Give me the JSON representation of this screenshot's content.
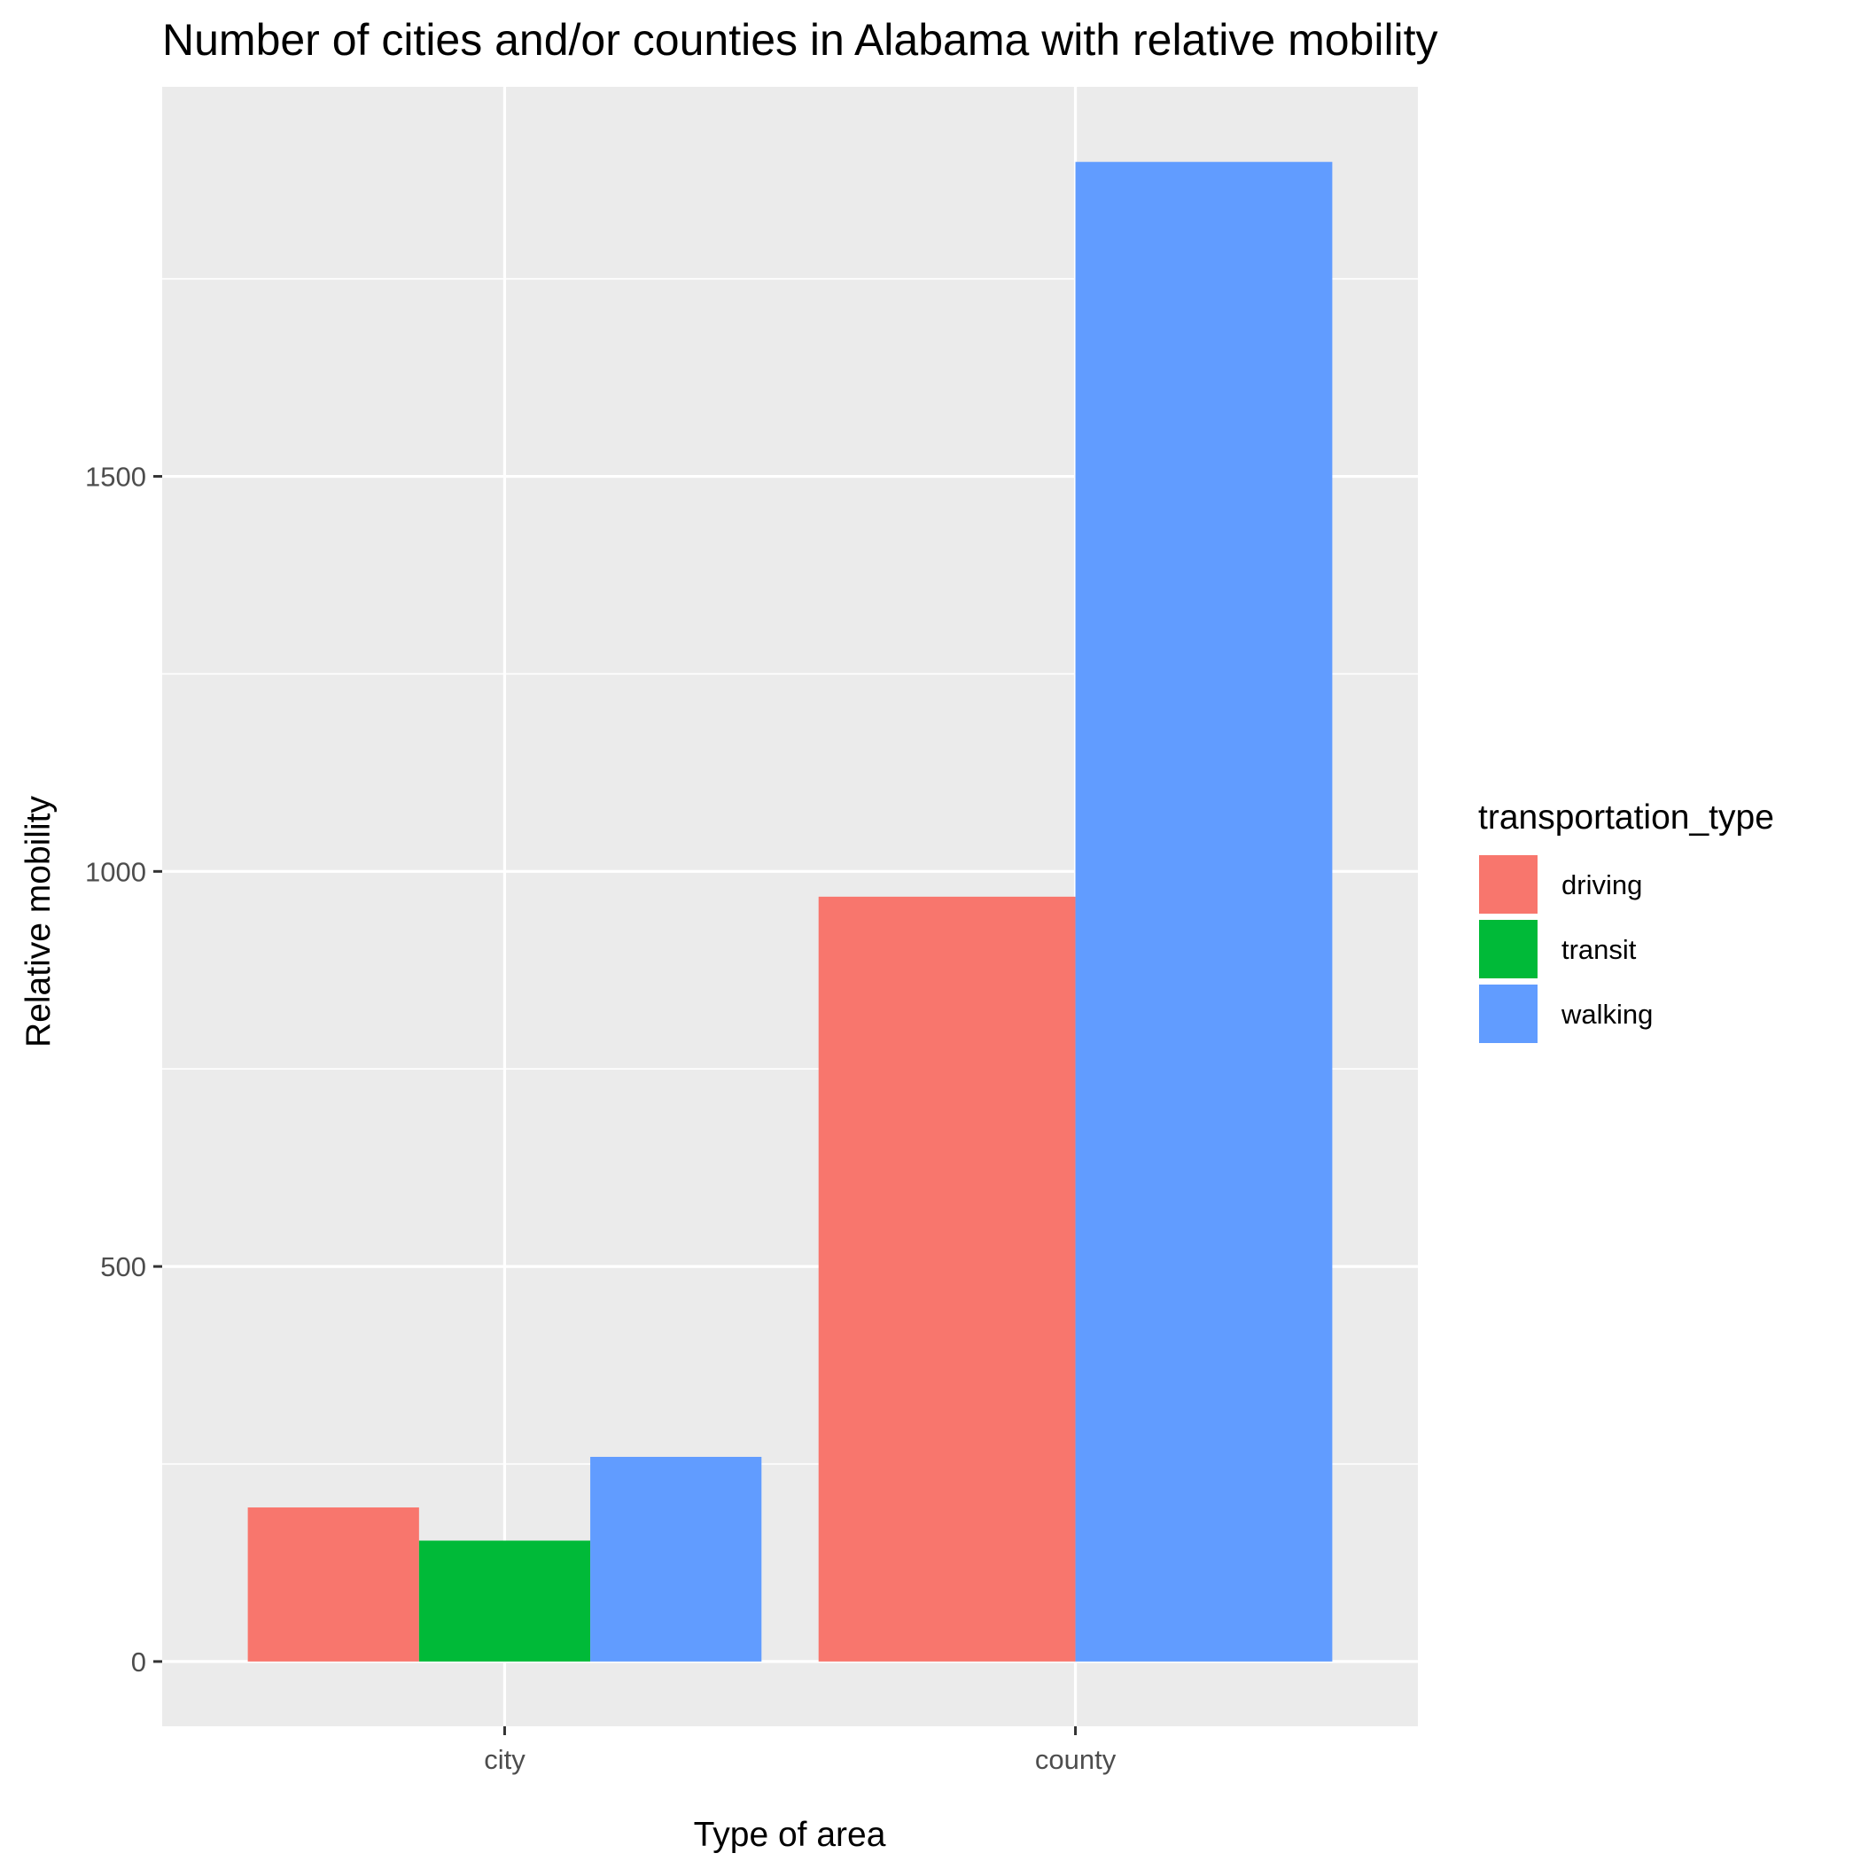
{
  "chart_data": {
    "type": "bar",
    "title": "Number of cities and/or counties in Alabama with relative mobility",
    "xlabel": "Type of area",
    "ylabel": "Relative mobility",
    "categories": [
      "city",
      "county"
    ],
    "series": [
      {
        "name": "driving",
        "color": "#F8766D",
        "values": [
          195,
          968
        ]
      },
      {
        "name": "transit",
        "color": "#00BA38",
        "values": [
          153,
          null
        ]
      },
      {
        "name": "walking",
        "color": "#619CFF",
        "values": [
          259,
          1898
        ]
      }
    ],
    "ylim": [
      -82,
      1993
    ],
    "y_ticks": [
      0,
      500,
      1000,
      1500
    ],
    "y_tick_labels": [
      "0",
      "500",
      "1000",
      "1500"
    ],
    "grid": true,
    "panel_background": "#EBEBEB",
    "legend": {
      "title": "transportation_type",
      "placement": "right"
    }
  }
}
